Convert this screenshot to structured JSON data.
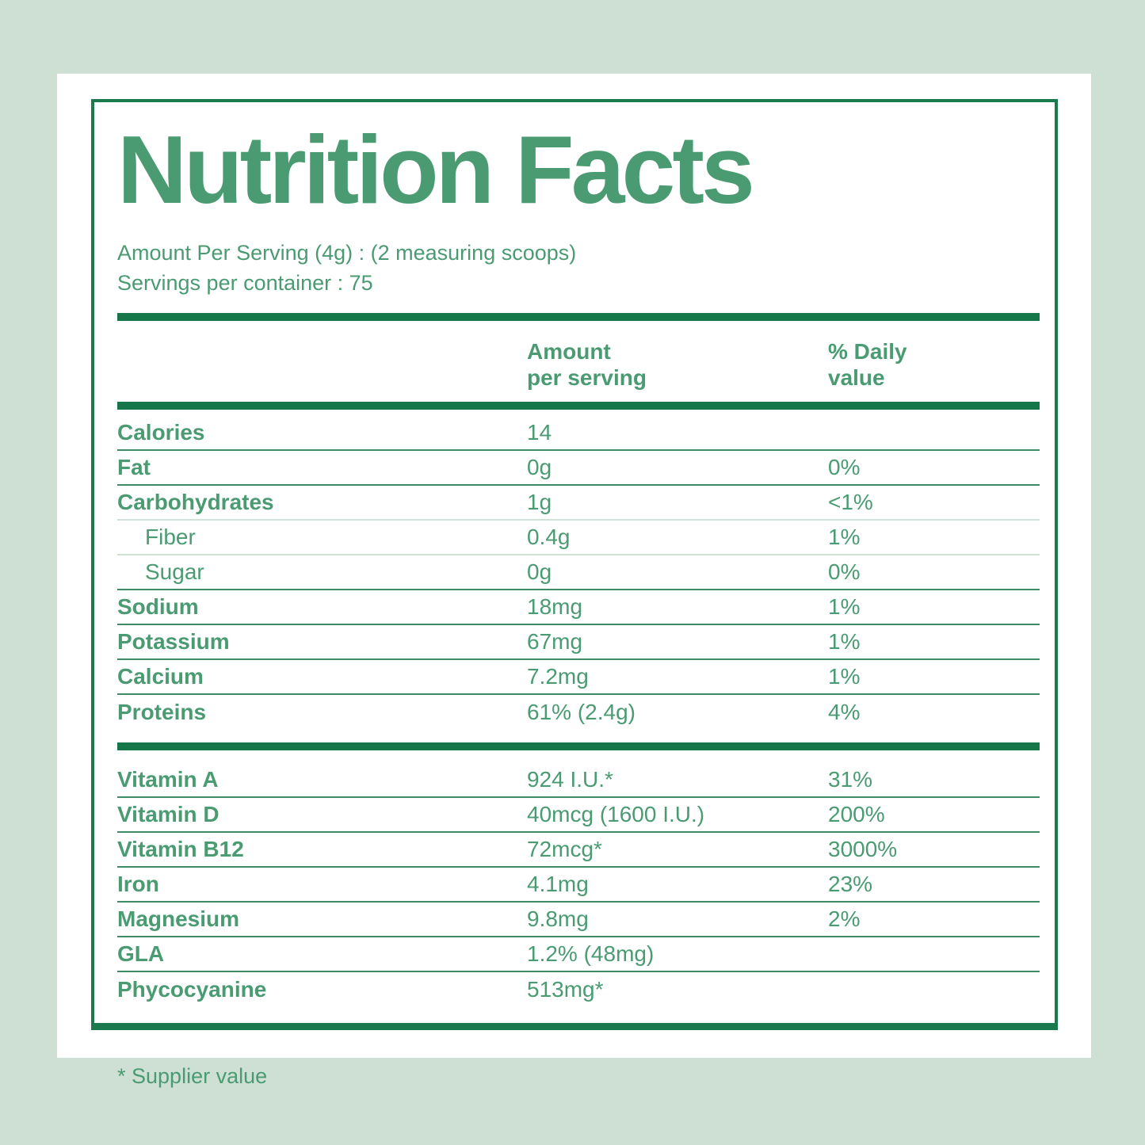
{
  "title": "Nutrition Facts",
  "serving_info": {
    "line1": "Amount Per Serving (4g) : (2 measuring scoops)",
    "line2": "Servings per container : 75"
  },
  "table": {
    "headers": {
      "amount": [
        "Amount",
        "per serving"
      ],
      "daily": [
        "% Daily",
        "value"
      ]
    },
    "sections": [
      {
        "rows": [
          {
            "label": "Calories",
            "amount": "14",
            "daily": "",
            "sub": false,
            "divider": "dark"
          },
          {
            "label": "Fat",
            "amount": "0g",
            "daily": "0%",
            "sub": false,
            "divider": "dark"
          },
          {
            "label": "Carbohydrates",
            "amount": "1g",
            "daily": "<1%",
            "sub": false,
            "divider": "light"
          },
          {
            "label": "Fiber",
            "amount": "0.4g",
            "daily": "1%",
            "sub": true,
            "divider": "light"
          },
          {
            "label": "Sugar",
            "amount": "0g",
            "daily": "0%",
            "sub": true,
            "divider": "dark"
          },
          {
            "label": "Sodium",
            "amount": "18mg",
            "daily": "1%",
            "sub": false,
            "divider": "dark"
          },
          {
            "label": "Potassium",
            "amount": "67mg",
            "daily": "1%",
            "sub": false,
            "divider": "dark"
          },
          {
            "label": "Calcium",
            "amount": "7.2mg",
            "daily": "1%",
            "sub": false,
            "divider": "dark"
          },
          {
            "label": "Proteins",
            "amount": "61% (2.4g)",
            "daily": "4%",
            "sub": false,
            "divider": "none"
          }
        ]
      },
      {
        "rows": [
          {
            "label": "Vitamin A",
            "amount": "924 I.U.*",
            "daily": "31%",
            "sub": false,
            "divider": "dark"
          },
          {
            "label": "Vitamin D",
            "amount": "40mcg (1600 I.U.)",
            "daily": "200%",
            "sub": false,
            "divider": "dark"
          },
          {
            "label": "Vitamin B12",
            "amount": "72mcg*",
            "daily": "3000%",
            "sub": false,
            "divider": "dark"
          },
          {
            "label": "Iron",
            "amount": "4.1mg",
            "daily": "23%",
            "sub": false,
            "divider": "dark"
          },
          {
            "label": "Magnesium",
            "amount": "9.8mg",
            "daily": "2%",
            "sub": false,
            "divider": "dark"
          },
          {
            "label": "GLA",
            "amount": "1.2% (48mg)",
            "daily": "",
            "sub": false,
            "divider": "dark"
          },
          {
            "label": "Phycocyanine",
            "amount": "513mg*",
            "daily": "",
            "sub": false,
            "divider": "none"
          }
        ]
      }
    ]
  },
  "footnote": "* Supplier value",
  "colors": {
    "background_mint": "#cde0d3",
    "card_white": "#ffffff",
    "text_green": "#4a9b72",
    "dark_green": "#15764a",
    "divider_green": "#418a63",
    "divider_light": "#cfe0d5"
  }
}
